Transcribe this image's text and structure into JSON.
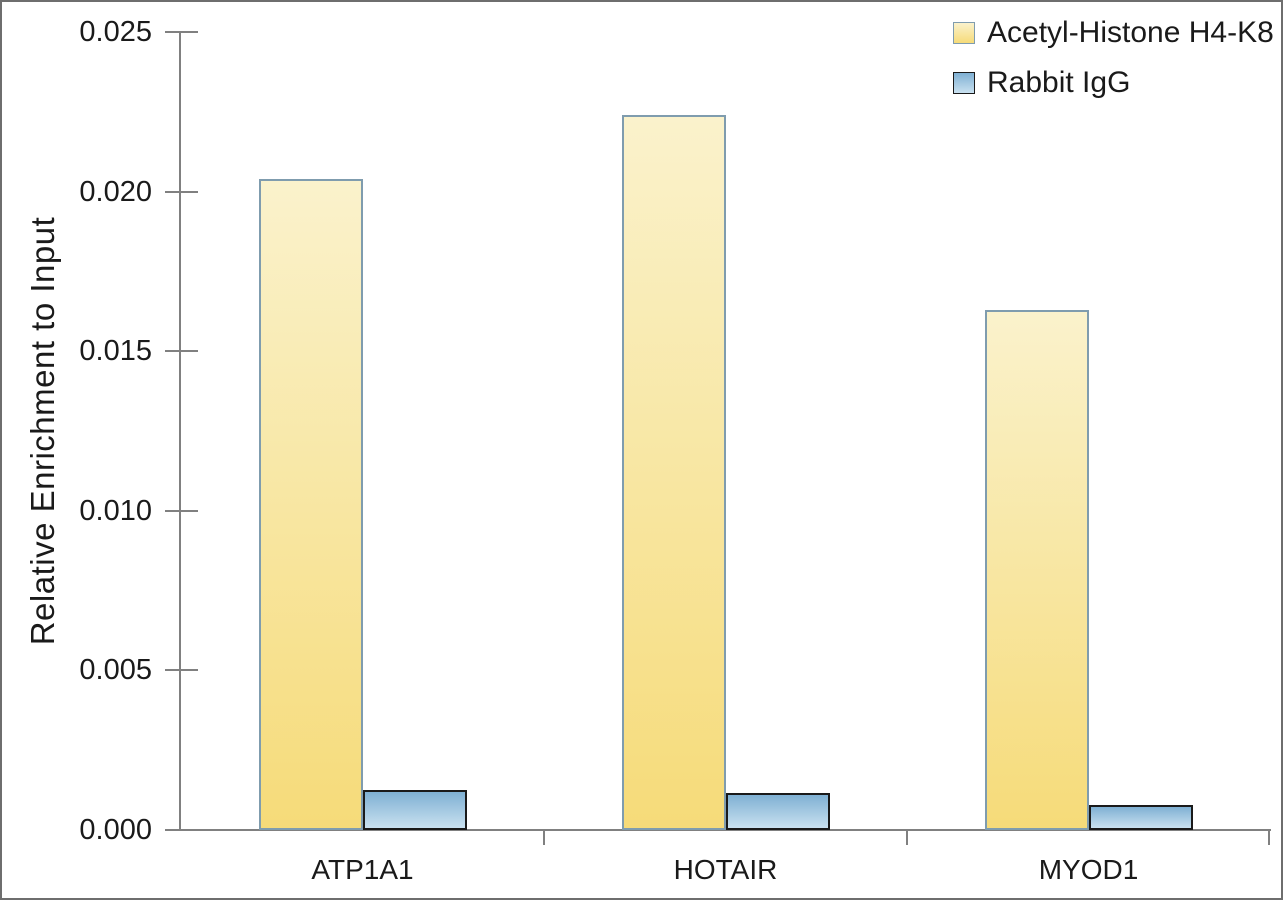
{
  "chart_data": {
    "type": "bar",
    "title": "",
    "categories": [
      "ATP1A1",
      "HOTAIR",
      "MYOD1"
    ],
    "series": [
      {
        "name": "Acetyl-Histone H4-K8",
        "values": [
          0.0204,
          0.0224,
          0.0163
        ],
        "fill_top": "#FAF2CC",
        "fill_bottom": "#F6DB79",
        "border_color": "#7F9CAE",
        "border_px": 2
      },
      {
        "name": "Rabbit IgG",
        "values": [
          0.00125,
          0.00116,
          0.00078
        ],
        "fill_top": "#7FB0D3",
        "fill_bottom": "#C9E1F0",
        "border_color": "#1A1A1A",
        "border_px": 2
      }
    ],
    "xlabel": "",
    "ylabel": "Relative Enrichment to Input",
    "ylim": [
      0,
      0.025
    ],
    "ytick_step": 0.005,
    "ytick_labels": [
      "0.000",
      "0.005",
      "0.010",
      "0.015",
      "0.020",
      "0.025"
    ],
    "grid": false,
    "legend_position": "top-right",
    "axis_color": "#808080",
    "text_color": "#1A1A1A"
  }
}
